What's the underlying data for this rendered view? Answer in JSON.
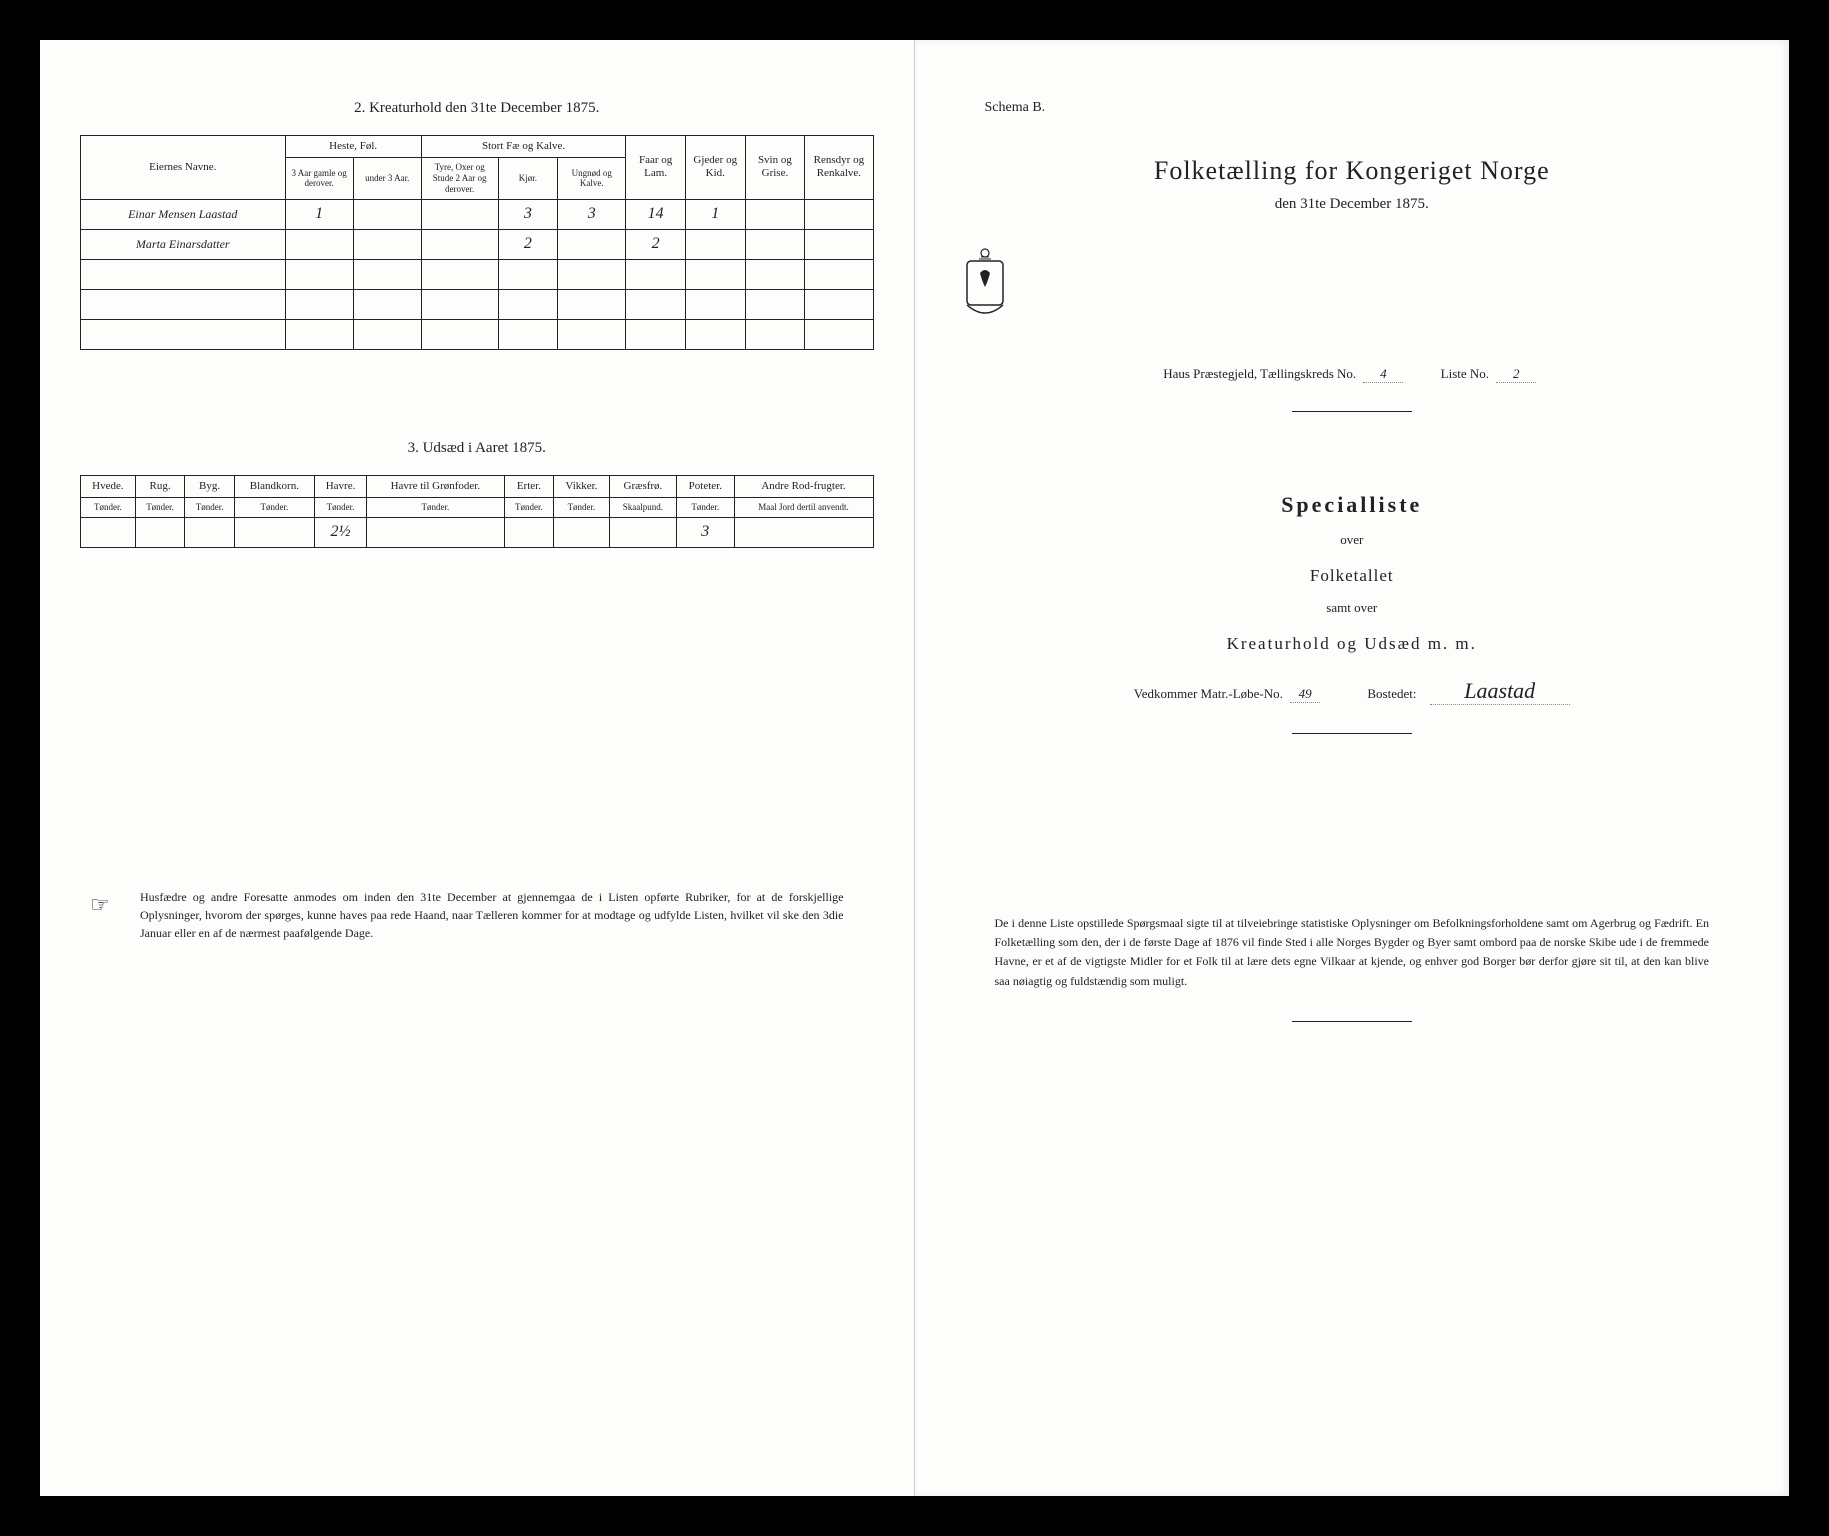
{
  "left": {
    "section2": {
      "title": "2.  Kreaturhold den 31te December 1875.",
      "colgroups": [
        "Eiernes Navne.",
        "Heste, Føl.",
        "Stort Fæ og Kalve.",
        "Faar og Lam.",
        "Gjeder og Kid.",
        "Svin og Grise.",
        "Rensdyr og Renkalve."
      ],
      "subheads": {
        "heste_a": "3 Aar gamle og derover.",
        "heste_b": "under 3 Aar.",
        "fe_a": "Tyre, Oxer og Stude 2 Aar og derover.",
        "fe_b": "Kjør.",
        "fe_c": "Ungnød og Kalve."
      },
      "rows": [
        {
          "name": "Einar Mensen Laastad",
          "heste_a": "1",
          "heste_b": "",
          "fe_a": "",
          "fe_b": "3",
          "fe_c": "3",
          "faar": "14",
          "gjed": "1",
          "svin": "",
          "ren": ""
        },
        {
          "name": "Marta Einarsdatter",
          "heste_a": "",
          "heste_b": "",
          "fe_a": "",
          "fe_b": "2",
          "fe_c": "",
          "faar": "2",
          "gjed": "",
          "svin": "",
          "ren": ""
        },
        {
          "name": "",
          "heste_a": "",
          "heste_b": "",
          "fe_a": "",
          "fe_b": "",
          "fe_c": "",
          "faar": "",
          "gjed": "",
          "svin": "",
          "ren": ""
        },
        {
          "name": "",
          "heste_a": "",
          "heste_b": "",
          "fe_a": "",
          "fe_b": "",
          "fe_c": "",
          "faar": "",
          "gjed": "",
          "svin": "",
          "ren": ""
        },
        {
          "name": "",
          "heste_a": "",
          "heste_b": "",
          "fe_a": "",
          "fe_b": "",
          "fe_c": "",
          "faar": "",
          "gjed": "",
          "svin": "",
          "ren": ""
        }
      ]
    },
    "section3": {
      "title": "3.  Udsæd i Aaret 1875.",
      "heads": [
        "Hvede.",
        "Rug.",
        "Byg.",
        "Blandkorn.",
        "Havre.",
        "Havre til Grønfoder.",
        "Erter.",
        "Vikker.",
        "Græsfrø.",
        "Poteter.",
        "Andre Rod-frugter."
      ],
      "units": [
        "Tønder.",
        "Tønder.",
        "Tønder.",
        "Tønder.",
        "Tønder.",
        "Tønder.",
        "Tønder.",
        "Tønder.",
        "Skaalpund.",
        "Tønder.",
        "Maal Jord dertil anvendt."
      ],
      "row": [
        "",
        "",
        "",
        "",
        "2½",
        "",
        "",
        "",
        "",
        "3",
        ""
      ]
    },
    "note": "Husfædre og andre Foresatte anmodes om inden den 31te December at gjennemgaa de i Listen opførte Rubriker, for at de forskjellige Oplysninger, hvorom der spørges, kunne haves paa rede Haand, naar Tælleren kommer for at modtage og udfylde Listen, hvilket vil ske den 3die Januar eller en af de nærmest paafølgende Dage."
  },
  "right": {
    "schema": "Schema B.",
    "title": "Folketælling for Kongeriget Norge",
    "subtitle": "den 31te December 1875.",
    "parish_line_a": "Haus Præstegjeld,  Tællingskreds No.",
    "kreds_no": "4",
    "parish_line_b": "Liste No.",
    "liste_no": "2",
    "special": "Specialliste",
    "over": "over",
    "folketallet": "Folketallet",
    "samt": "samt over",
    "kreatur": "Kreaturhold og Udsæd m. m.",
    "matr_label": "Vedkommer Matr.-Løbe-No.",
    "matr_no": "49",
    "bosted_label": "Bostedet:",
    "bosted": "Laastad",
    "note": "De i denne Liste opstillede Spørgsmaal sigte til at tilveiebringe statistiske Oplysninger om Befolkningsforholdene samt om Agerbrug og Fædrift.  En Folketælling som den, der i de første Dage af 1876 vil finde Sted i alle Norges Bygder og Byer samt ombord paa de norske Skibe ude i de fremmede Havne, er et af de vigtigste Midler for et Folk til at lære dets egne Vilkaar at kjende, og enhver god Borger bør derfor gjøre sit til, at den kan blive saa nøiagtig og fuldstændig som muligt."
  }
}
